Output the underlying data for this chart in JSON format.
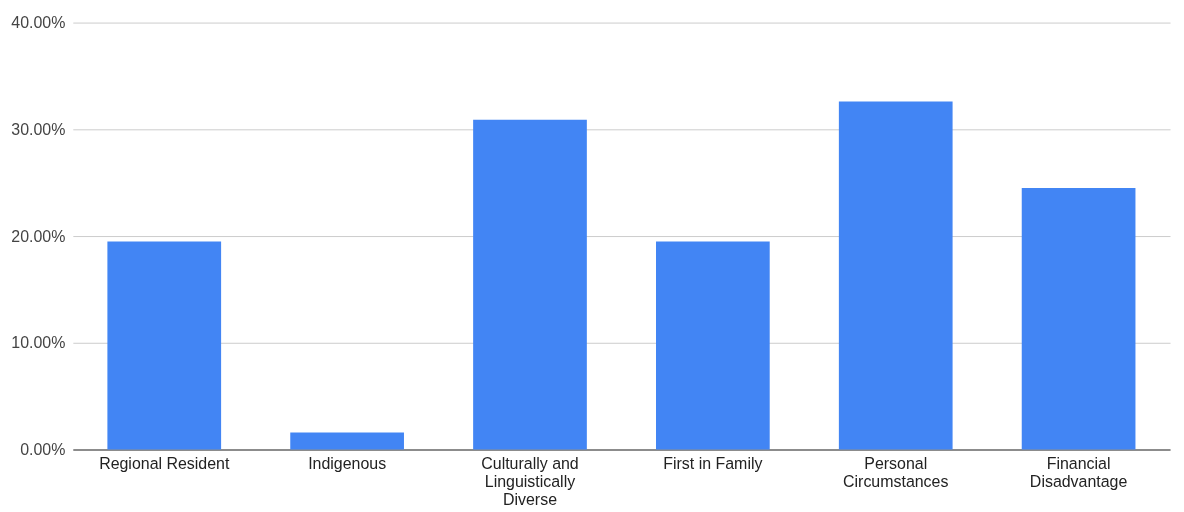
{
  "chart_data": {
    "type": "bar",
    "categories": [
      "Regional Resident",
      "Indigenous",
      "Culturally and Linguistically Diverse",
      "First in Family",
      "Personal Circumstances",
      "Financial Disadvantage"
    ],
    "values": [
      19.5,
      1.6,
      30.9,
      19.5,
      32.6,
      24.5
    ],
    "color": "#4285f4",
    "ylim": [
      0,
      40
    ],
    "yticks": [
      {
        "value": 0,
        "label": "0.00%"
      },
      {
        "value": 10,
        "label": "10.00%"
      },
      {
        "value": 20,
        "label": "20.00%"
      },
      {
        "value": 30,
        "label": "30.00%"
      },
      {
        "value": 40,
        "label": "40.00%"
      }
    ],
    "grid": "y"
  }
}
